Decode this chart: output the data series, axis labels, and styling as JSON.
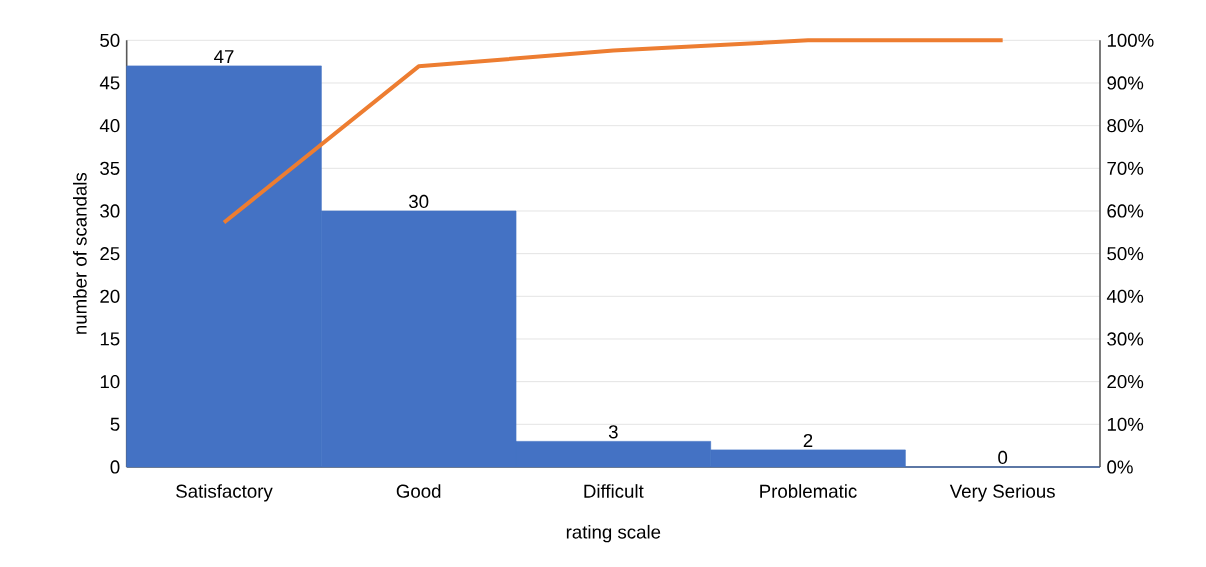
{
  "chart_data": {
    "type": "bar",
    "xlabel": "rating scale",
    "ylabel": "number of scandals",
    "categories": [
      "Satisfactory",
      "Good",
      "Difficult",
      "Problematic",
      "Very Serious"
    ],
    "series": [
      {
        "color": "#4472c4",
        "values": [
          47,
          30,
          3,
          2,
          0
        ],
        "value_labels": [
          "47",
          "30",
          "3",
          "2",
          "0"
        ]
      },
      {
        "type": "line",
        "axis": "y2",
        "color": "#ed7d31",
        "values": [
          57.3,
          93.9,
          97.6,
          100,
          100
        ]
      }
    ],
    "ylim": [
      0,
      50
    ],
    "yticks": [
      0,
      5,
      10,
      15,
      20,
      25,
      30,
      35,
      40,
      45,
      50
    ],
    "y2lim": [
      0,
      100
    ],
    "y2ticks": [
      {
        "value": 0,
        "label": "0%"
      },
      {
        "value": 10,
        "label": "10%"
      },
      {
        "value": 20,
        "label": "20%"
      },
      {
        "value": 30,
        "label": "30%"
      },
      {
        "value": 40,
        "label": "40%"
      },
      {
        "value": 50,
        "label": "50%"
      },
      {
        "value": 60,
        "label": "60%"
      },
      {
        "value": 70,
        "label": "70%"
      },
      {
        "value": 80,
        "label": "80%"
      },
      {
        "value": 90,
        "label": "90%"
      },
      {
        "value": 100,
        "label": "100%"
      }
    ],
    "grid": "y"
  }
}
